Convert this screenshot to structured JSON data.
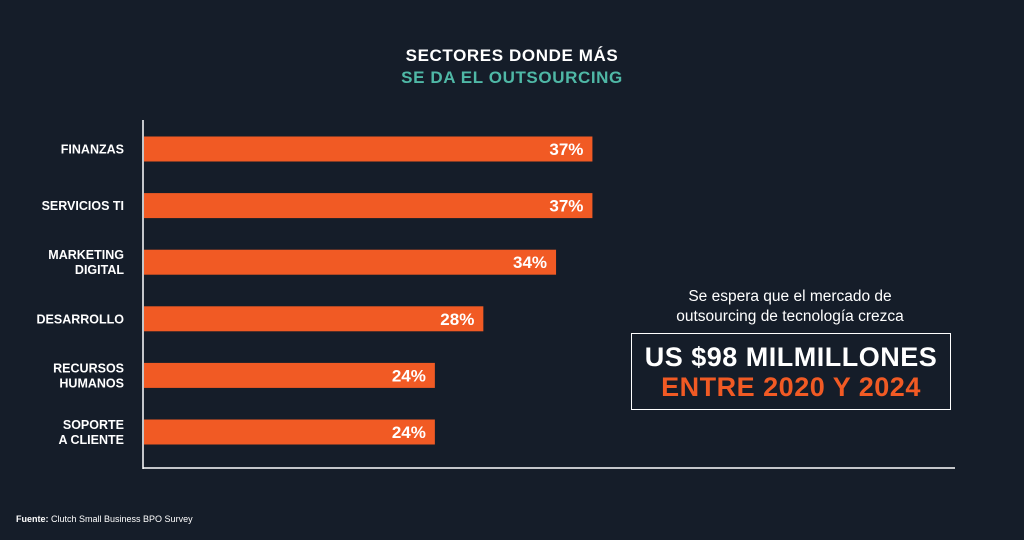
{
  "title": {
    "line1": "SECTORES DONDE MÁS",
    "line2": "SE DA EL OUTSOURCING"
  },
  "colors": {
    "background": "#151d29",
    "bar": "#f15a24",
    "accent_teal": "#4fb8a6",
    "axis": "#ffffff"
  },
  "chart_data": {
    "type": "bar",
    "orientation": "horizontal",
    "categories": [
      [
        "FINANZAS"
      ],
      [
        "SERVICIOS TI"
      ],
      [
        "MARKETING",
        "DIGITAL"
      ],
      [
        "DESARROLLO"
      ],
      [
        "RECURSOS",
        "HUMANOS"
      ],
      [
        "SOPORTE",
        "A CLIENTE"
      ]
    ],
    "values": [
      37,
      37,
      34,
      28,
      24,
      24
    ],
    "value_labels": [
      "37%",
      "37%",
      "34%",
      "28%",
      "24%",
      "24%"
    ],
    "unit": "%",
    "xlim": [
      0,
      67
    ],
    "grid": false,
    "title": "SECTORES DONDE MÁS SE DA EL OUTSOURCING"
  },
  "callout": {
    "text_line1": "Se espera que el mercado de",
    "text_line2": "outsourcing de tecnología crezca",
    "amount": "US $98 MILMILLONES",
    "period": "ENTRE 2020 Y 2024"
  },
  "source": {
    "label": "Fuente:",
    "text": "Clutch Small Business BPO Survey"
  }
}
